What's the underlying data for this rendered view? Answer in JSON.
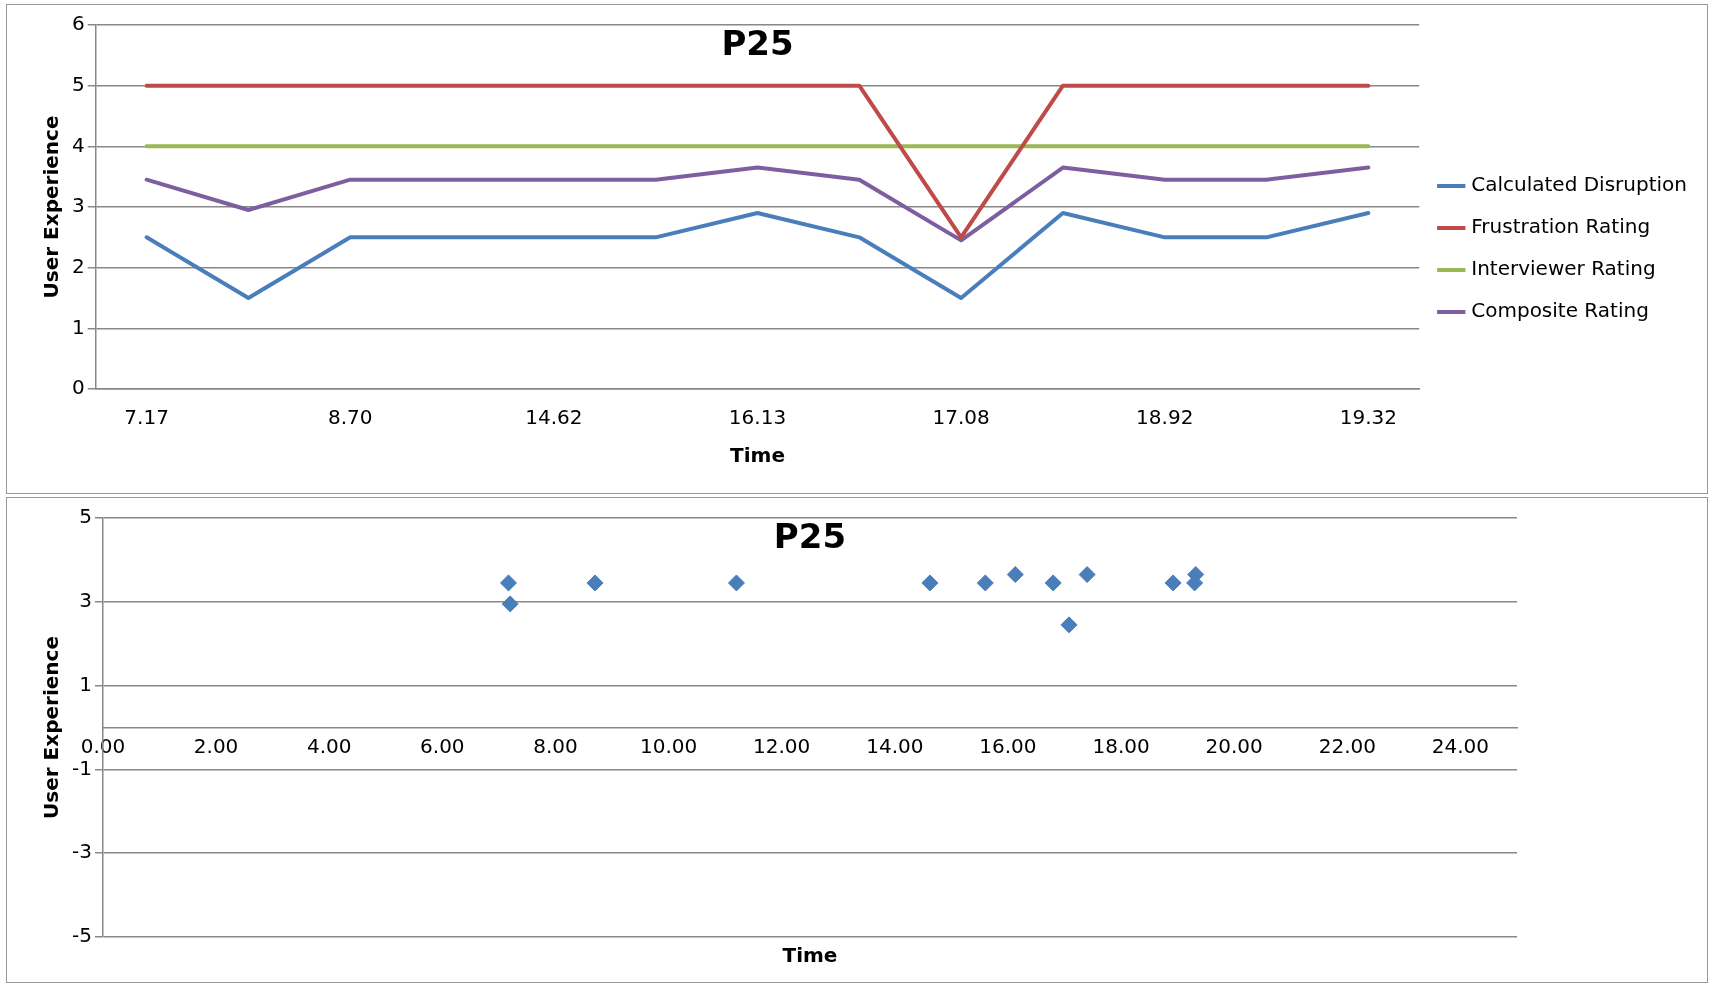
{
  "chart_data": [
    {
      "type": "line",
      "title": "P25",
      "xlabel": "Time",
      "ylabel": "User Experience",
      "categories": [
        "7.17",
        null,
        "8.70",
        null,
        "14.62",
        null,
        "16.13",
        null,
        "17.08",
        null,
        "18.92",
        null,
        "19.32"
      ],
      "ylim": [
        0,
        6
      ],
      "yticks": [
        0,
        1,
        2,
        3,
        4,
        5,
        6
      ],
      "grid": "y",
      "legend": "right",
      "marker": "none",
      "series": [
        {
          "name": "Calculated Disruption",
          "color": "#4a7ebb",
          "values": [
            2.5,
            1.5,
            2.5,
            2.5,
            2.5,
            2.5,
            2.9,
            2.5,
            1.5,
            2.9,
            2.5,
            2.5,
            2.9
          ]
        },
        {
          "name": "Frustration Rating",
          "color": "#be4b48",
          "values": [
            5,
            5,
            5,
            5,
            5,
            5,
            5,
            5,
            2.5,
            5,
            5,
            5,
            5
          ]
        },
        {
          "name": "Interviewer Rating",
          "color": "#98b954",
          "values": [
            4,
            4,
            4,
            4,
            4,
            4,
            4,
            4,
            4,
            4,
            4,
            4,
            4
          ]
        },
        {
          "name": "Composite Rating",
          "color": "#7d5fa0",
          "values": [
            3.45,
            2.95,
            3.45,
            3.45,
            3.45,
            3.45,
            3.65,
            3.45,
            2.45,
            3.65,
            3.45,
            3.45,
            3.65
          ]
        }
      ]
    },
    {
      "type": "scatter",
      "title": "P25",
      "xlabel": "Time",
      "ylabel": "User Experience",
      "x": [
        7.17,
        7.2,
        8.7,
        11.2,
        14.62,
        15.6,
        16.13,
        16.8,
        17.08,
        17.4,
        18.92,
        19.3,
        19.32
      ],
      "values": [
        3.45,
        2.95,
        3.45,
        3.45,
        3.45,
        3.45,
        3.65,
        3.45,
        2.45,
        3.65,
        3.45,
        3.45,
        3.65
      ],
      "color": "#4a7ebb",
      "marker": "diamond",
      "xlim": [
        0,
        25
      ],
      "xticks": [
        {
          "value": 0,
          "label": "0.00"
        },
        {
          "value": 2,
          "label": "2.00"
        },
        {
          "value": 4,
          "label": "4.00"
        },
        {
          "value": 6,
          "label": "6.00"
        },
        {
          "value": 8,
          "label": "8.00"
        },
        {
          "value": 10,
          "label": "10.00"
        },
        {
          "value": 12,
          "label": "12.00"
        },
        {
          "value": 14,
          "label": "14.00"
        },
        {
          "value": 16,
          "label": "16.00"
        },
        {
          "value": 18,
          "label": "18.00"
        },
        {
          "value": 20,
          "label": "20.00"
        },
        {
          "value": 22,
          "label": "22.00"
        },
        {
          "value": 24,
          "label": "24.00"
        }
      ],
      "ylim": [
        -5,
        5
      ],
      "yticks": [
        -5,
        -3,
        -1,
        1,
        3,
        5
      ],
      "grid": "y",
      "legend": false
    }
  ]
}
